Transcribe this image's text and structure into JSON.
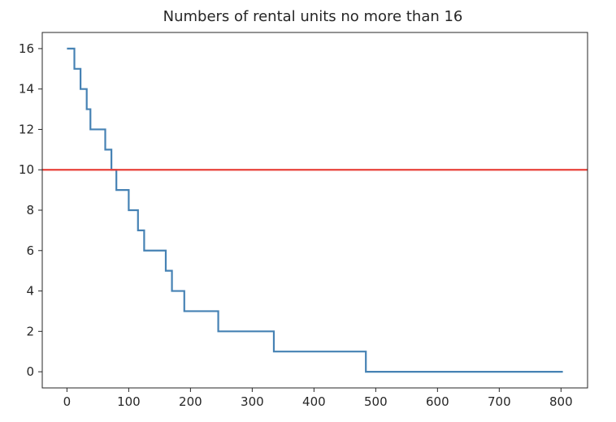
{
  "chart_data": {
    "type": "line",
    "title": "Numbers of rental units no more than 16",
    "xlabel": "",
    "ylabel": "",
    "xlim": [
      -40,
      843
    ],
    "ylim": [
      -0.8,
      16.8
    ],
    "x_ticks": [
      0,
      100,
      200,
      300,
      400,
      500,
      600,
      700,
      800
    ],
    "y_ticks": [
      0,
      2,
      4,
      6,
      8,
      10,
      12,
      14,
      16
    ],
    "grid": false,
    "legend": "none",
    "series": [
      {
        "color": "#4682b4",
        "step": true,
        "x": [
          0,
          12,
          22,
          32,
          38,
          46,
          62,
          72,
          80,
          88,
          100,
          115,
          125,
          130,
          160,
          170,
          175,
          190,
          225,
          245,
          300,
          335,
          420,
          484,
          600,
          803
        ],
        "y": [
          16,
          15,
          14,
          13,
          12,
          12,
          11,
          10,
          9,
          9,
          8,
          7,
          6,
          6,
          5,
          4,
          4,
          3,
          3,
          2,
          2,
          1,
          1,
          0,
          0,
          0
        ]
      }
    ],
    "hline": {
      "y": 10,
      "color": "#e8413a"
    }
  }
}
